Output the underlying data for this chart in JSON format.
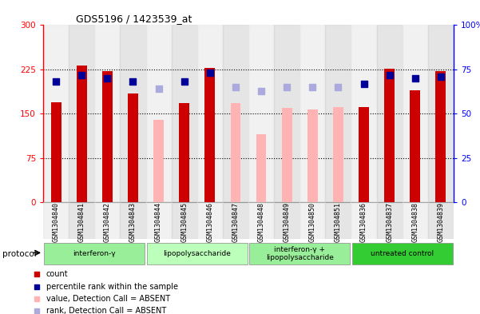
{
  "title": "GDS5196 / 1423539_at",
  "samples": [
    "GSM1304840",
    "GSM1304841",
    "GSM1304842",
    "GSM1304843",
    "GSM1304844",
    "GSM1304845",
    "GSM1304846",
    "GSM1304847",
    "GSM1304848",
    "GSM1304849",
    "GSM1304850",
    "GSM1304851",
    "GSM1304836",
    "GSM1304837",
    "GSM1304838",
    "GSM1304839"
  ],
  "count_present": [
    170,
    232,
    222,
    185,
    null,
    168,
    228,
    null,
    null,
    null,
    null,
    null,
    162,
    226,
    190,
    222
  ],
  "count_absent": [
    null,
    null,
    null,
    null,
    140,
    null,
    null,
    168,
    115,
    160,
    158,
    162,
    null,
    null,
    null,
    null
  ],
  "rank_present": [
    68,
    72,
    70,
    68,
    null,
    68,
    73,
    null,
    null,
    null,
    null,
    null,
    67,
    72,
    70,
    71
  ],
  "rank_absent": [
    null,
    null,
    null,
    null,
    64,
    null,
    null,
    65,
    63,
    65,
    65,
    65,
    null,
    null,
    null,
    null
  ],
  "bar_color_present": "#cc0000",
  "bar_color_absent": "#ffb3b3",
  "dot_color_present": "#000099",
  "dot_color_absent": "#aaaadd",
  "ylim_left": [
    0,
    300
  ],
  "ylim_right": [
    0,
    100
  ],
  "yticks_left": [
    0,
    75,
    150,
    225,
    300
  ],
  "yticks_right": [
    0,
    25,
    50,
    75,
    100
  ],
  "groups": [
    {
      "label": "interferon-γ",
      "start": 0,
      "end": 4,
      "color": "#99ee99"
    },
    {
      "label": "lipopolysaccharide",
      "start": 4,
      "end": 8,
      "color": "#bbffbb"
    },
    {
      "label": "interferon-γ +\nlipopolysaccharide",
      "start": 8,
      "end": 12,
      "color": "#99ee99"
    },
    {
      "label": "untreated control",
      "start": 12,
      "end": 16,
      "color": "#33cc33"
    }
  ],
  "legend_items": [
    {
      "label": "count",
      "color": "#cc0000",
      "marker": "s"
    },
    {
      "label": "percentile rank within the sample",
      "color": "#000099",
      "marker": "s"
    },
    {
      "label": "value, Detection Call = ABSENT",
      "color": "#ffb3b3",
      "marker": "s"
    },
    {
      "label": "rank, Detection Call = ABSENT",
      "color": "#aaaadd",
      "marker": "s"
    }
  ],
  "bar_width": 0.4,
  "dot_size": 28
}
